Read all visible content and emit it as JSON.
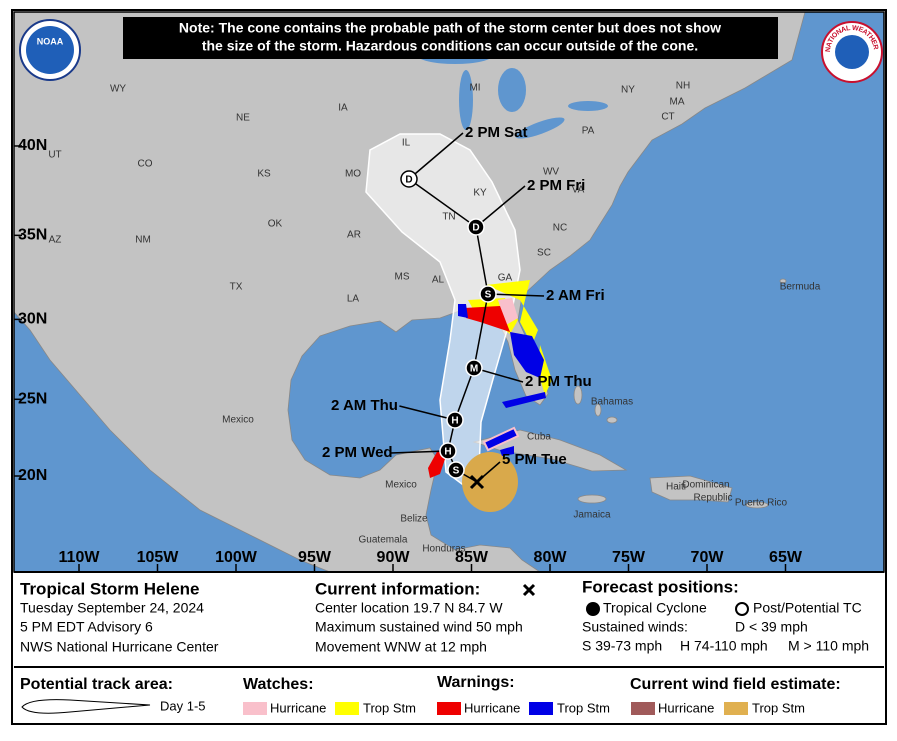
{
  "note": [
    "Note: The cone contains the probable path of the storm center but does not show",
    "the size of the storm. Hazardous conditions can occur outside of the cone."
  ],
  "logos": {
    "noaa": "NOAA",
    "nws": "NATIONAL WEATHER SERVICE"
  },
  "map": {
    "lat_ticks": [
      {
        "value": 40,
        "label": "40N"
      },
      {
        "value": 35,
        "label": "35N"
      },
      {
        "value": 30,
        "label": "30N"
      },
      {
        "value": 25,
        "label": "25N"
      },
      {
        "value": 20,
        "label": "20N"
      }
    ],
    "lon_ticks": [
      {
        "value": -110,
        "label": "110W"
      },
      {
        "value": -105,
        "label": "105W"
      },
      {
        "value": -100,
        "label": "100W"
      },
      {
        "value": -95,
        "label": "95W"
      },
      {
        "value": -90,
        "label": "90W"
      },
      {
        "value": -85,
        "label": "85W"
      },
      {
        "value": -80,
        "label": "80W"
      },
      {
        "value": -75,
        "label": "75W"
      },
      {
        "value": -70,
        "label": "70W"
      },
      {
        "value": -65,
        "label": "65W"
      }
    ],
    "places": [
      "WY",
      "NE",
      "IA",
      "IL",
      "MI",
      "NY",
      "NH",
      "MA",
      "CT",
      "PA",
      "UT",
      "CO",
      "KS",
      "MO",
      "KY",
      "WV",
      "VA",
      "TN",
      "NC",
      "OK",
      "AR",
      "SC",
      "AZ",
      "NM",
      "GA",
      "MS",
      "AL",
      "TX",
      "LA",
      "Bermuda",
      "Mexico",
      "Bahamas",
      "Cuba",
      "Mexico",
      "Belize",
      "Guatemala",
      "Honduras",
      "Jamaica",
      "Haiti",
      "Dominican",
      "Republic",
      "Puerto Rico"
    ],
    "current": {
      "label": "5 PM Tue"
    },
    "track": [
      {
        "symbol": "S"
      },
      {
        "label": "2 PM Wed",
        "symbol": "H"
      },
      {
        "label": "2 AM Thu",
        "symbol": "H"
      },
      {
        "label": "2 PM Thu",
        "symbol": "M"
      },
      {
        "label": "2 AM Fri",
        "symbol": "S"
      },
      {
        "label": "2 PM Fri",
        "symbol": "D"
      },
      {
        "label": "2 PM Sat",
        "symbol": "D",
        "post_tropical": true
      }
    ]
  },
  "info": {
    "storm": {
      "title": "Tropical Storm Helene",
      "lines": [
        "Tuesday September 24, 2024",
        "5 PM EDT Advisory 6",
        "NWS National Hurricane Center"
      ]
    },
    "current": {
      "title": "Current information:",
      "lines": [
        "Center location 19.7 N 84.7 W",
        "Maximum sustained wind 50 mph",
        "Movement WNW at 12 mph"
      ]
    },
    "forecast": {
      "title": "Forecast positions:",
      "tropical": "Tropical Cyclone",
      "post_tropical": "Post/Potential TC",
      "winds_title": "Sustained winds:",
      "winds": [
        "D < 39 mph",
        "S 39-73 mph",
        "H 74-110 mph",
        "M > 110 mph"
      ]
    }
  },
  "legend": {
    "track": {
      "title": "Potential track area:",
      "item": "Day 1-5"
    },
    "watches": {
      "title": "Watches:",
      "items": [
        "Hurricane",
        "Trop Stm"
      ]
    },
    "warnings": {
      "title": "Warnings:",
      "items": [
        "Hurricane",
        "Trop Stm"
      ]
    },
    "wind_field": {
      "title": "Current wind field estimate:",
      "items": [
        "Hurricane",
        "Trop Stm"
      ]
    }
  }
}
